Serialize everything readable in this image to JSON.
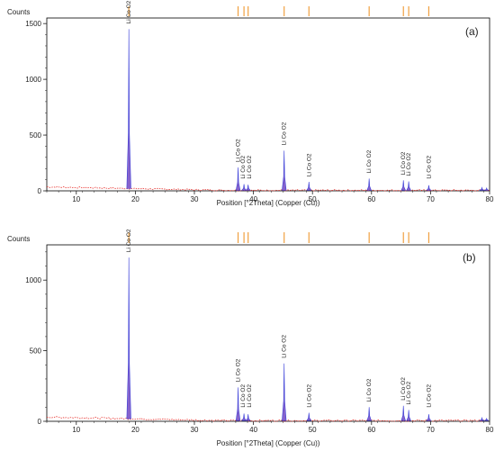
{
  "figure": {
    "colors": {
      "profile_fill": "#7a52c7",
      "profile_stroke": "#3a3fd9",
      "noise": "#e8322e",
      "reference_marker": "#f0a040",
      "axis": "#222222",
      "frame": "#000000"
    }
  },
  "chart_data": [
    {
      "type": "line",
      "panel_label": "(a)",
      "ylabel": "Counts",
      "xlabel": "Position [°2Theta] (Copper (Cu))",
      "xlim": [
        5,
        80
      ],
      "ylim": [
        0,
        1550
      ],
      "x_ticks": [
        10,
        20,
        30,
        40,
        50,
        60,
        70,
        80
      ],
      "y_ticks": [
        0,
        500,
        1000,
        1500
      ],
      "reference_marker_positions": [
        18.9,
        37.4,
        38.4,
        39.1,
        45.2,
        49.4,
        59.6,
        65.4,
        66.3,
        69.7
      ],
      "peaks": [
        {
          "x": 18.9,
          "y": 1450
        },
        {
          "x": 37.4,
          "y": 210
        },
        {
          "x": 38.4,
          "y": 60
        },
        {
          "x": 39.1,
          "y": 55
        },
        {
          "x": 45.2,
          "y": 360
        },
        {
          "x": 49.4,
          "y": 80
        },
        {
          "x": 59.6,
          "y": 110
        },
        {
          "x": 65.4,
          "y": 95
        },
        {
          "x": 66.3,
          "y": 85
        },
        {
          "x": 69.7,
          "y": 50
        },
        {
          "x": 78.7,
          "y": 30
        },
        {
          "x": 79.5,
          "y": 25
        }
      ],
      "peak_labels": [
        {
          "x": 18.9,
          "lines": [
            "Li Co O2"
          ]
        },
        {
          "x": 37.4,
          "lines": [
            "Li Co O2"
          ]
        },
        {
          "x": 38.8,
          "lines": [
            "Li Co O2",
            "Li Co O2"
          ]
        },
        {
          "x": 45.2,
          "lines": [
            "Li Co O2"
          ]
        },
        {
          "x": 49.4,
          "lines": [
            "Li Co O2"
          ]
        },
        {
          "x": 59.6,
          "lines": [
            "Li Co O2"
          ]
        },
        {
          "x": 65.4,
          "lines": [
            "Li Co O2"
          ]
        },
        {
          "x": 66.3,
          "lines": [
            "Li Co O2"
          ]
        },
        {
          "x": 69.7,
          "lines": [
            "Li Co O2"
          ]
        }
      ],
      "background": {
        "start": 35,
        "end": 5
      },
      "grid": false
    },
    {
      "type": "line",
      "panel_label": "(b)",
      "ylabel": "Counts",
      "xlabel": "Position [°2Theta] (Copper (Cu))",
      "xlim": [
        5,
        80
      ],
      "ylim": [
        0,
        1250
      ],
      "x_ticks": [
        10,
        20,
        30,
        40,
        50,
        60,
        70,
        80
      ],
      "y_ticks": [
        0,
        500,
        1000
      ],
      "reference_marker_positions": [
        18.9,
        37.4,
        38.4,
        39.1,
        45.2,
        49.4,
        59.6,
        65.4,
        66.3,
        69.7
      ],
      "peaks": [
        {
          "x": 18.9,
          "y": 1160
        },
        {
          "x": 37.4,
          "y": 240
        },
        {
          "x": 38.4,
          "y": 55
        },
        {
          "x": 39.1,
          "y": 50
        },
        {
          "x": 45.2,
          "y": 410
        },
        {
          "x": 49.4,
          "y": 60
        },
        {
          "x": 59.6,
          "y": 100
        },
        {
          "x": 65.4,
          "y": 110
        },
        {
          "x": 66.3,
          "y": 80
        },
        {
          "x": 69.7,
          "y": 50
        },
        {
          "x": 78.7,
          "y": 25
        },
        {
          "x": 79.5,
          "y": 20
        }
      ],
      "peak_labels": [
        {
          "x": 18.9,
          "lines": [
            "Li Co O2"
          ]
        },
        {
          "x": 37.4,
          "lines": [
            "Li Co O2"
          ]
        },
        {
          "x": 38.8,
          "lines": [
            "Li Co O2",
            "Li Co O2"
          ]
        },
        {
          "x": 45.2,
          "lines": [
            "Li Co O2"
          ]
        },
        {
          "x": 49.4,
          "lines": [
            "Li Co O2"
          ]
        },
        {
          "x": 59.6,
          "lines": [
            "Li Co O2"
          ]
        },
        {
          "x": 65.4,
          "lines": [
            "Li Co O2"
          ]
        },
        {
          "x": 66.3,
          "lines": [
            "Li Co O2"
          ]
        },
        {
          "x": 69.7,
          "lines": [
            "Li Co O2"
          ]
        }
      ],
      "background": {
        "start": 30,
        "end": 5
      },
      "grid": false
    }
  ]
}
